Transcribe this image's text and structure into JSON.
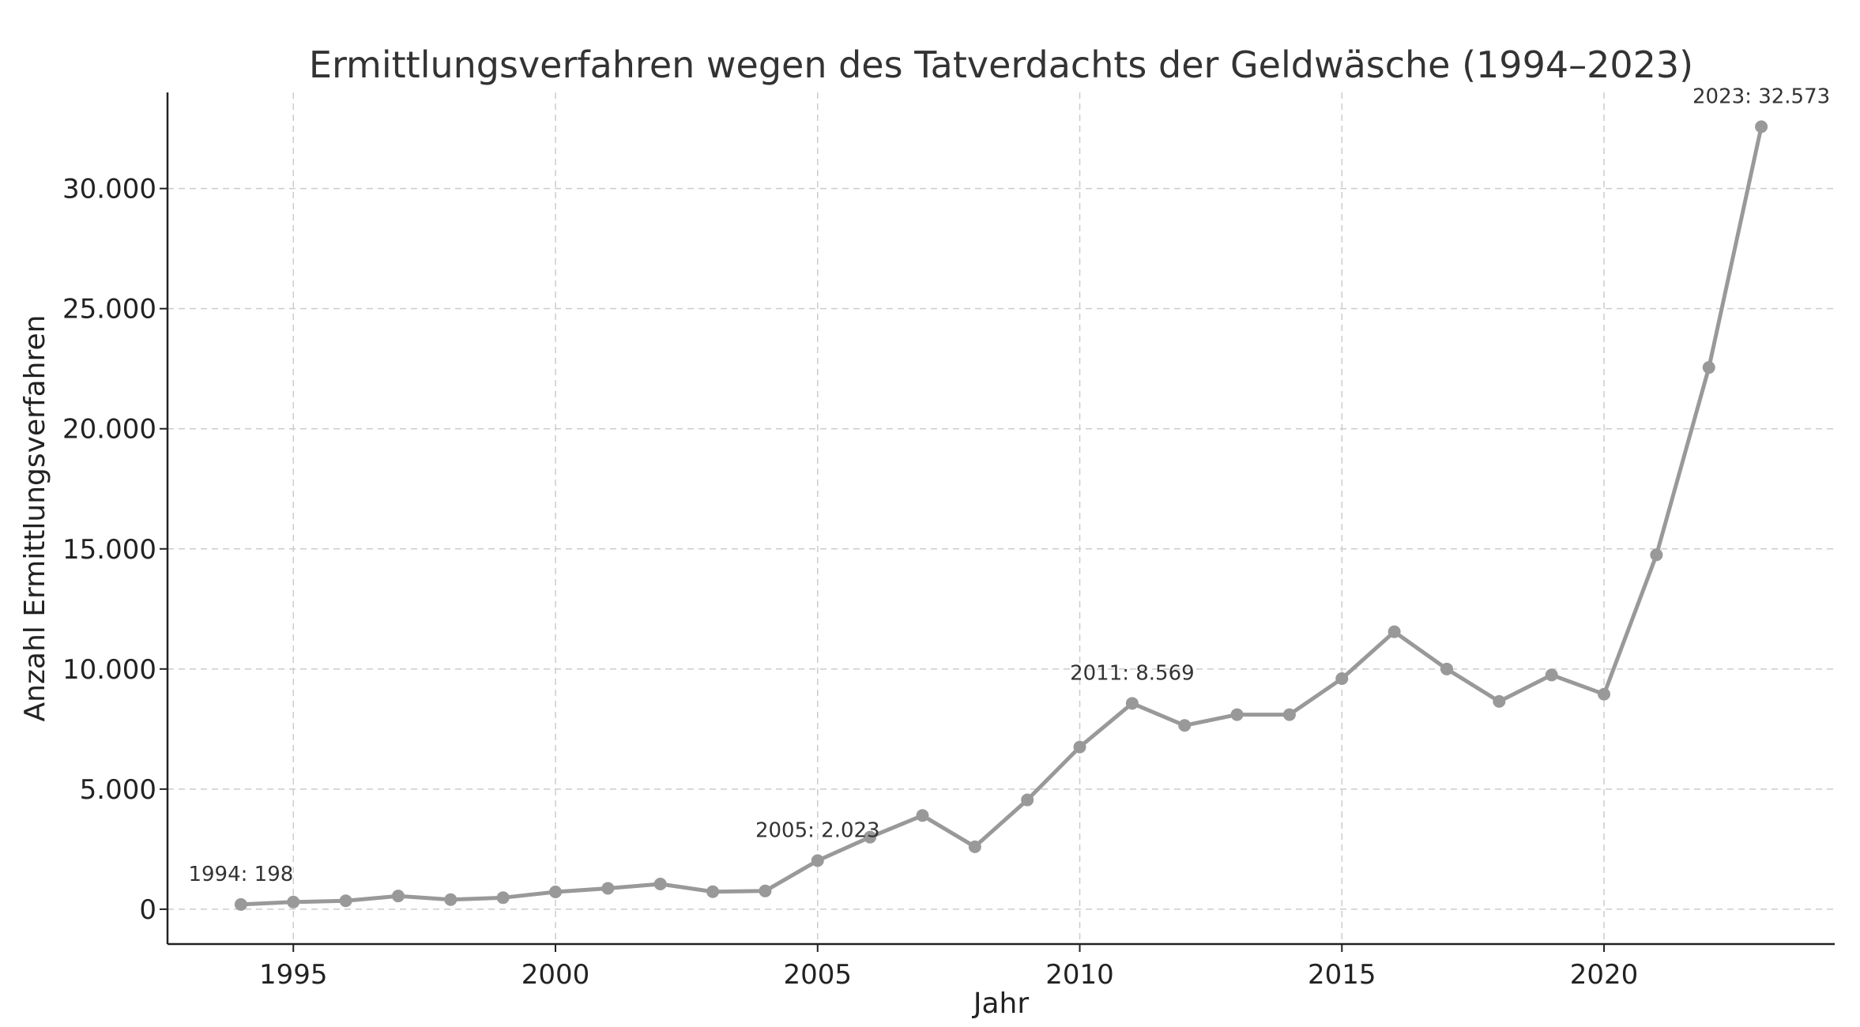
{
  "chart_data": {
    "type": "line",
    "title": "Ermittlungsverfahren wegen des Tatverdachts der Geldwäsche (1994–2023)",
    "xlabel": "Jahr",
    "ylabel": "Anzahl Ermittlungsverfahren",
    "xlim": [
      1992.6,
      2024.4
    ],
    "ylim": [
      -1450,
      34000
    ],
    "x_ticks": [
      1995,
      2000,
      2005,
      2010,
      2015,
      2020
    ],
    "x_tick_labels": [
      "1995",
      "2000",
      "2005",
      "2010",
      "2015",
      "2020"
    ],
    "y_ticks": [
      0,
      5000,
      10000,
      15000,
      20000,
      25000,
      30000
    ],
    "y_tick_labels": [
      "0",
      "5.000",
      "10.000",
      "15.000",
      "20.000",
      "25.000",
      "30.000"
    ],
    "grid": true,
    "line_color": "#999999",
    "x": [
      1994,
      1995,
      1996,
      1997,
      1998,
      1999,
      2000,
      2001,
      2002,
      2003,
      2004,
      2005,
      2006,
      2007,
      2008,
      2009,
      2010,
      2011,
      2012,
      2013,
      2014,
      2015,
      2016,
      2017,
      2018,
      2019,
      2020,
      2021,
      2022,
      2023
    ],
    "values": [
      198,
      300,
      350,
      550,
      400,
      480,
      720,
      870,
      1050,
      730,
      760,
      2023,
      3000,
      3900,
      2600,
      4550,
      6750,
      8569,
      7650,
      8100,
      8100,
      9600,
      11550,
      10000,
      8650,
      9750,
      8950,
      14750,
      22550,
      32573
    ],
    "annotations": [
      {
        "x": 1994,
        "y": 198,
        "text": "1994: 198"
      },
      {
        "x": 2005,
        "y": 2023,
        "text": "2005: 2.023"
      },
      {
        "x": 2011,
        "y": 8569,
        "text": "2011: 8.569"
      },
      {
        "x": 2023,
        "y": 32573,
        "text": "2023: 32.573"
      }
    ]
  }
}
